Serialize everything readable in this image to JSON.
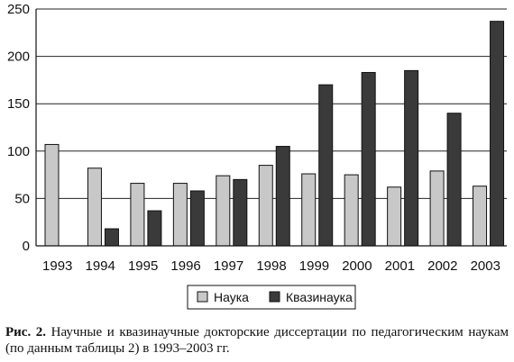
{
  "chart_data": {
    "type": "bar",
    "categories": [
      "1993",
      "1994",
      "1995",
      "1996",
      "1997",
      "1998",
      "1999",
      "2000",
      "2001",
      "2002",
      "2003"
    ],
    "series": [
      {
        "name": "Наука",
        "values": [
          107,
          82,
          66,
          66,
          74,
          85,
          76,
          75,
          62,
          79,
          63
        ],
        "color": "#c8c8c8"
      },
      {
        "name": "Квазинаука",
        "values": [
          0,
          18,
          37,
          58,
          70,
          105,
          170,
          183,
          185,
          140,
          237
        ],
        "color": "#3a3a3a"
      }
    ],
    "ylim": [
      0,
      250
    ],
    "yticks": [
      0,
      50,
      100,
      150,
      200,
      250
    ],
    "grid": true,
    "legend_placement": "bottom-center"
  },
  "caption": {
    "figure_label": "Рис. 2.",
    "text": " Научные и квазинаучные докторские диссертации по педагогическим наукам (по данным таблицы 2) в 1993–2003 гг."
  }
}
